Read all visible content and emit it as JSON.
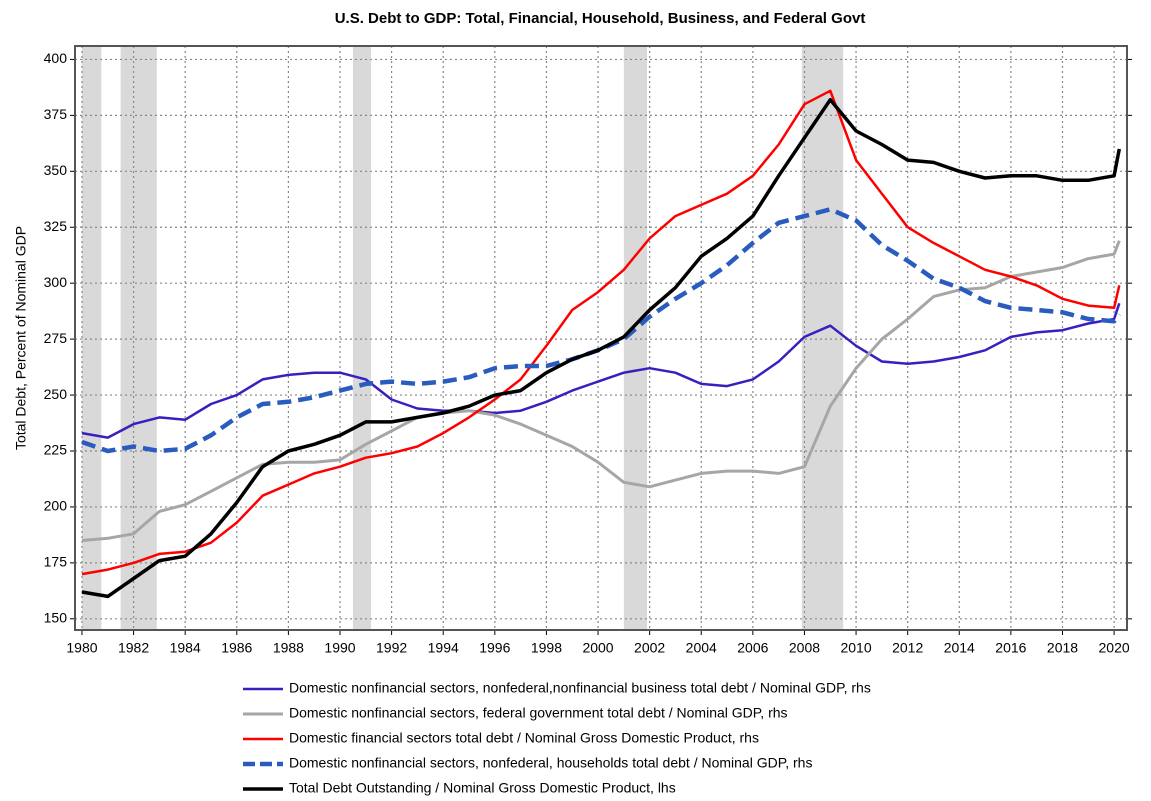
{
  "chart_data": {
    "type": "line",
    "title": "U.S. Debt to GDP: Total, Financial, Household, Business, and Federal Govt",
    "y_label": "Total Debt, Percent of Nominal GDP",
    "x": [
      1980,
      1981,
      1982,
      1983,
      1984,
      1985,
      1986,
      1987,
      1988,
      1989,
      1990,
      1991,
      1992,
      1993,
      1994,
      1995,
      1996,
      1997,
      1998,
      1999,
      2000,
      2001,
      2002,
      2003,
      2004,
      2005,
      2006,
      2007,
      2008,
      2009,
      2010,
      2011,
      2012,
      2013,
      2014,
      2015,
      2016,
      2017,
      2018,
      2019,
      2020,
      2020.2
    ],
    "series": [
      {
        "name": "Domestic nonfinancial sectors, nonfederal,nonfinancial business total debt / Nominal GDP, rhs",
        "color": "#3a1fbf",
        "values": [
          233,
          231,
          237,
          240,
          239,
          246,
          250,
          257,
          259,
          260,
          260,
          257,
          248,
          244,
          243,
          243,
          242,
          243,
          247,
          252,
          256,
          260,
          262,
          260,
          255,
          254,
          257,
          265,
          276,
          281,
          272,
          265,
          264,
          265,
          267,
          270,
          276,
          278,
          279,
          282,
          284,
          291
        ]
      },
      {
        "name": "Domestic nonfinancial sectors, federal government total debt / Nominal GDP, rhs",
        "color": "#a6a6a6",
        "values": [
          185,
          186,
          188,
          198,
          201,
          207,
          213,
          219,
          220,
          220,
          221,
          228,
          234,
          240,
          242,
          243,
          241,
          237,
          232,
          227,
          220,
          211,
          209,
          212,
          215,
          216,
          216,
          215,
          218,
          245,
          262,
          275,
          284,
          294,
          297,
          298,
          303,
          305,
          307,
          311,
          313,
          319
        ]
      },
      {
        "name": "Domestic financial sectors total debt / Nominal Gross Domestic Product, rhs",
        "color": "#ff0000",
        "values": [
          170,
          172,
          175,
          179,
          180,
          184,
          193,
          205,
          210,
          215,
          218,
          222,
          224,
          227,
          233,
          240,
          248,
          257,
          272,
          288,
          296,
          306,
          320,
          330,
          335,
          340,
          348,
          362,
          380,
          386,
          355,
          340,
          325,
          318,
          312,
          306,
          303,
          299,
          293,
          290,
          289,
          299
        ]
      },
      {
        "name": "Domestic nonfinancial sectors, nonfederal, households total debt / Nominal GDP, rhs",
        "color": "#2a5cbf",
        "style": "dashed",
        "values": [
          229,
          225,
          227,
          225,
          226,
          232,
          240,
          246,
          247,
          249,
          252,
          255,
          256,
          255,
          256,
          258,
          262,
          263,
          263,
          266,
          270,
          275,
          285,
          293,
          300,
          308,
          318,
          327,
          330,
          333,
          328,
          317,
          310,
          302,
          298,
          292,
          289,
          288,
          287,
          284,
          283,
          286
        ]
      },
      {
        "name": "Total Debt Outstanding / Nominal Gross Domestic Product, lhs",
        "color": "#000000",
        "values": [
          162,
          160,
          168,
          176,
          178,
          188,
          202,
          218,
          225,
          228,
          232,
          238,
          238,
          240,
          242,
          245,
          250,
          252,
          260,
          266,
          270,
          276,
          288,
          298,
          312,
          320,
          330,
          348,
          365,
          382,
          368,
          362,
          355,
          354,
          350,
          347,
          348,
          348,
          346,
          346,
          348,
          360
        ]
      }
    ],
    "recessions": [
      [
        1980.0,
        1980.75
      ],
      [
        1981.5,
        1982.9
      ],
      [
        1990.5,
        1991.2
      ],
      [
        2001.0,
        2001.9
      ],
      [
        2007.9,
        2009.5
      ]
    ],
    "recession_color": "#d9d9d9",
    "xlim": [
      1979.73,
      2020.5
    ],
    "xticks": [
      1980,
      1982,
      1984,
      1986,
      1988,
      1990,
      1992,
      1994,
      1996,
      1998,
      2000,
      2002,
      2004,
      2006,
      2008,
      2010,
      2012,
      2014,
      2016,
      2018,
      2020
    ],
    "ylim": [
      145,
      406
    ],
    "yticks": [
      150,
      175,
      200,
      225,
      250,
      275,
      300,
      325,
      350,
      375,
      400
    ],
    "grid": true
  }
}
